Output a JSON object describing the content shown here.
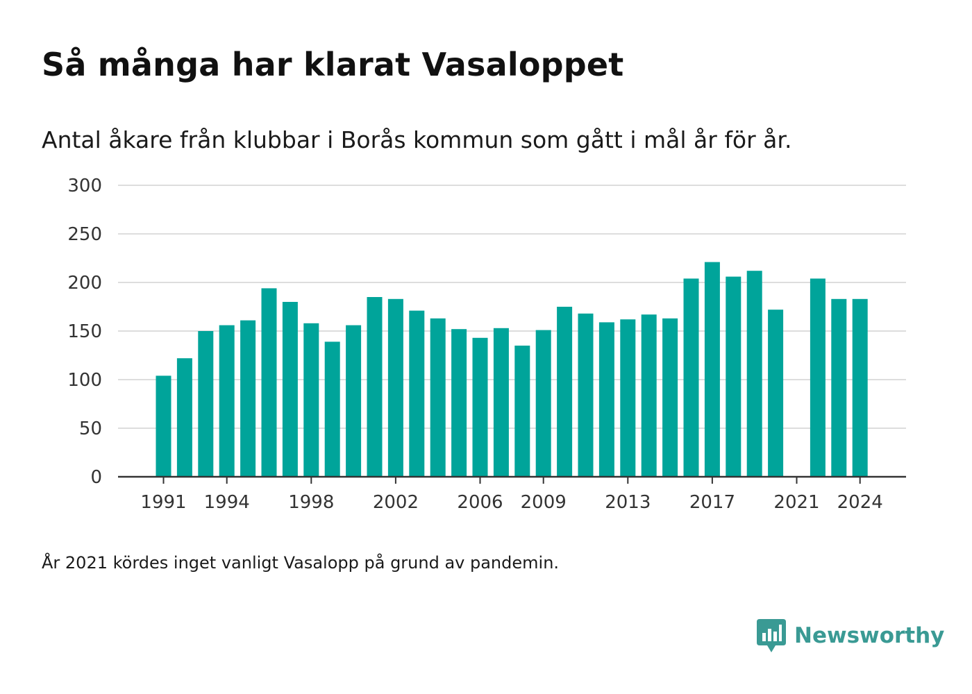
{
  "title": "Så många har klarat Vasaloppet",
  "subtitle": "Antal åkare från klubbar i Borås kommun som gått i mål år för år.",
  "footnote": "År 2021 kördes inget vanligt Vasalopp på grund av pandemin.",
  "brand": {
    "name": "Newsworthy",
    "icon": "newsworthy-logo-icon",
    "color": "#3a9a94"
  },
  "colors": {
    "bar": "#00a49a",
    "gridline": "#dddddd",
    "axis": "#333333"
  },
  "chart_data": {
    "type": "bar",
    "title": "Så många har klarat Vasaloppet",
    "subtitle": "Antal åkare från klubbar i Borås kommun som gått i mål år för år.",
    "categories": [
      1991,
      1992,
      1993,
      1994,
      1995,
      1996,
      1997,
      1998,
      1999,
      2000,
      2001,
      2002,
      2003,
      2004,
      2005,
      2006,
      2007,
      2008,
      2009,
      2010,
      2011,
      2012,
      2013,
      2014,
      2015,
      2016,
      2017,
      2018,
      2019,
      2020,
      2021,
      2022,
      2023,
      2024
    ],
    "values": [
      104,
      122,
      150,
      156,
      161,
      194,
      180,
      158,
      139,
      156,
      185,
      183,
      171,
      163,
      152,
      143,
      153,
      135,
      151,
      175,
      168,
      159,
      162,
      167,
      163,
      204,
      221,
      206,
      212,
      172,
      0,
      204,
      183,
      183
    ],
    "x_tick_labels": [
      "1991",
      "1994",
      "1998",
      "2002",
      "2006",
      "2009",
      "2013",
      "2017",
      "2021",
      "2024"
    ],
    "y_ticks": [
      0,
      50,
      100,
      150,
      200,
      250,
      300
    ],
    "ylim": [
      0,
      300
    ],
    "grid": true,
    "legend": "none"
  }
}
